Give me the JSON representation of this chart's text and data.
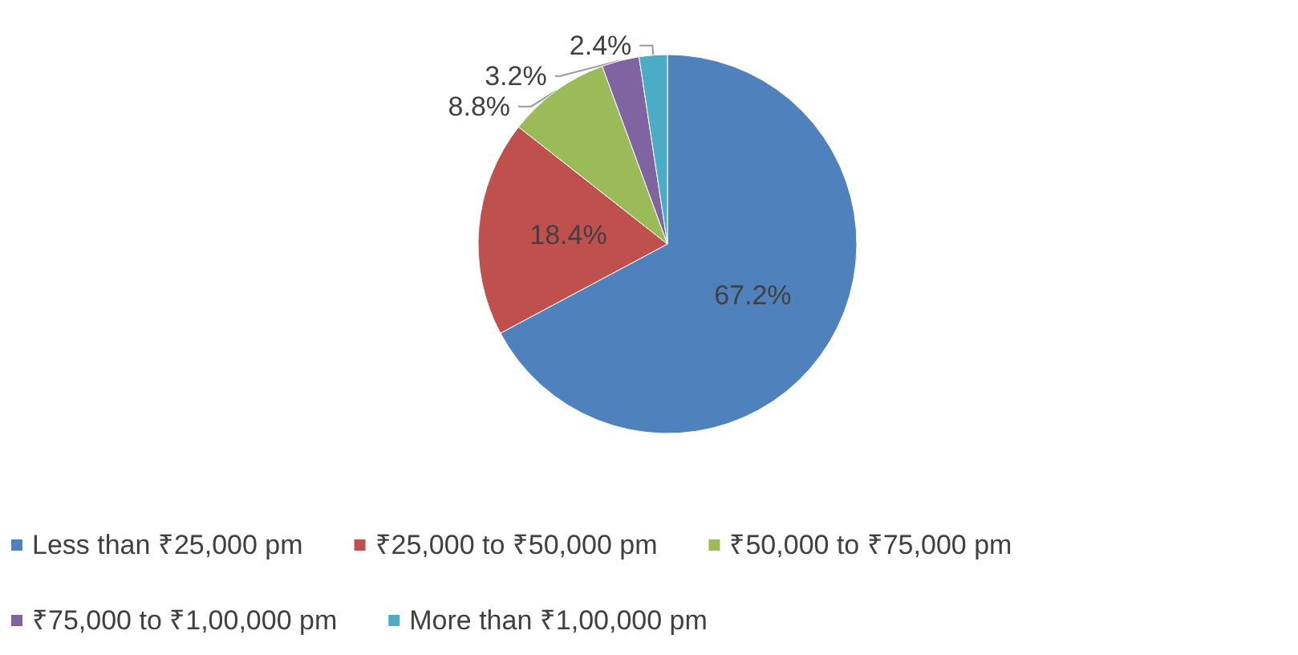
{
  "chart_data": {
    "type": "pie",
    "categories": [
      "Less than ₹25,000 pm",
      "₹25,000 to ₹50,000 pm",
      "₹50,000 to ₹75,000 pm",
      "₹75,000 to ₹1,00,000 pm",
      "More than ₹1,00,000 pm"
    ],
    "values": [
      67.2,
      18.4,
      8.8,
      3.2,
      2.4
    ],
    "colors": [
      "#4f81bd",
      "#c0504d",
      "#9bbb59",
      "#8064a2",
      "#4bacc6"
    ],
    "value_labels": [
      "67.2%",
      "18.4%",
      "8.8%",
      "3.2%",
      "2.4%"
    ],
    "legend": "bottom"
  }
}
